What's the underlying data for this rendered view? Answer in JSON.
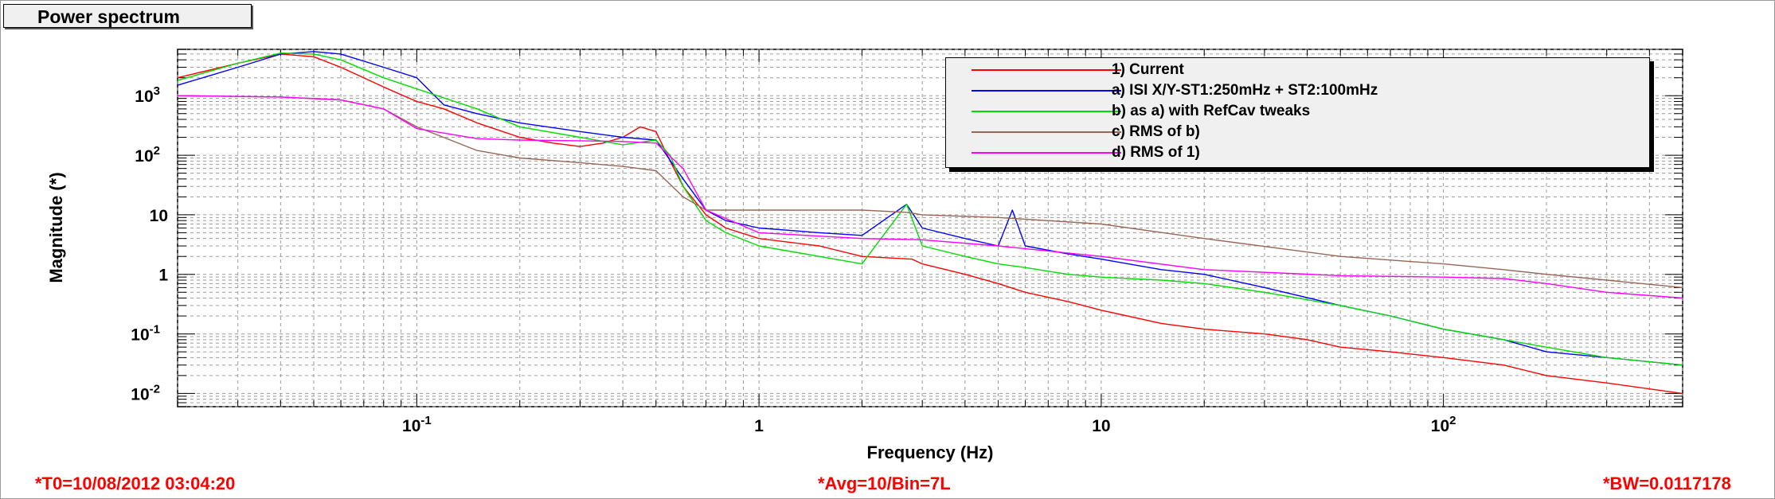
{
  "window": {
    "title": "Power spectrum"
  },
  "footer": {
    "t0": "*T0=10/08/2012 03:04:20",
    "avg": "*Avg=10/Bin=7L",
    "bw": "*BW=0.0117178"
  },
  "chart_data": {
    "type": "line",
    "title": "",
    "xlabel": "Frequency (Hz)",
    "ylabel": "Magnitude (*)",
    "xscale": "log",
    "yscale": "log",
    "xlim": [
      0.02,
      500
    ],
    "ylim": [
      0.006,
      6000
    ],
    "grid": true,
    "legend_position": "top-right",
    "x_ticks": [
      {
        "value": 0.1,
        "label": "10",
        "exp": "-1"
      },
      {
        "value": 1,
        "label": "1",
        "exp": ""
      },
      {
        "value": 10,
        "label": "10",
        "exp": ""
      },
      {
        "value": 100,
        "label": "10",
        "exp": "2"
      }
    ],
    "y_ticks": [
      {
        "value": 0.01,
        "label": "10",
        "exp": "-2"
      },
      {
        "value": 0.1,
        "label": "10",
        "exp": "-1"
      },
      {
        "value": 1,
        "label": "1",
        "exp": ""
      },
      {
        "value": 10,
        "label": "10",
        "exp": ""
      },
      {
        "value": 100,
        "label": "10",
        "exp": "2"
      },
      {
        "value": 1000,
        "label": "10",
        "exp": "3"
      }
    ],
    "series": [
      {
        "name": "1) Current",
        "color": "#ff0000",
        "x": [
          0.02,
          0.03,
          0.04,
          0.05,
          0.06,
          0.07,
          0.08,
          0.1,
          0.12,
          0.15,
          0.2,
          0.25,
          0.3,
          0.35,
          0.4,
          0.45,
          0.5,
          0.55,
          0.6,
          0.7,
          0.8,
          1,
          1.5,
          2,
          2.8,
          3,
          4,
          5,
          6,
          8,
          10,
          15,
          20,
          30,
          40,
          50,
          70,
          100,
          150,
          200,
          300,
          500
        ],
        "y": [
          2000,
          3500,
          5000,
          4500,
          3000,
          2000,
          1400,
          800,
          600,
          350,
          200,
          160,
          140,
          160,
          200,
          300,
          250,
          80,
          30,
          10,
          6,
          4,
          3,
          2,
          1.8,
          1.5,
          1,
          0.7,
          0.5,
          0.35,
          0.25,
          0.15,
          0.12,
          0.1,
          0.08,
          0.06,
          0.05,
          0.04,
          0.03,
          0.02,
          0.015,
          0.01
        ]
      },
      {
        "name": "a) ISI X/Y-ST1:250mHz + ST2:100mHz",
        "color": "#0000ff",
        "x": [
          0.02,
          0.03,
          0.04,
          0.05,
          0.06,
          0.08,
          0.1,
          0.12,
          0.15,
          0.2,
          0.3,
          0.4,
          0.5,
          0.6,
          0.7,
          0.8,
          1,
          1.5,
          2,
          2.7,
          3,
          4,
          5,
          5.5,
          6,
          8,
          10,
          15,
          20,
          30,
          50,
          70,
          100,
          150,
          200,
          300,
          500
        ],
        "y": [
          1500,
          3000,
          5000,
          5500,
          5000,
          3000,
          2000,
          700,
          500,
          350,
          250,
          200,
          180,
          40,
          12,
          8,
          6,
          5,
          4.5,
          15,
          6,
          4,
          3,
          12,
          3,
          2.2,
          1.8,
          1.2,
          1,
          0.6,
          0.3,
          0.2,
          0.12,
          0.08,
          0.05,
          0.04,
          0.03
        ]
      },
      {
        "name": "b) as a) with RefCav tweaks",
        "color": "#00dd00",
        "x": [
          0.02,
          0.03,
          0.04,
          0.05,
          0.06,
          0.08,
          0.1,
          0.15,
          0.2,
          0.3,
          0.4,
          0.5,
          0.55,
          0.6,
          0.7,
          0.8,
          1,
          1.5,
          2,
          2.7,
          3,
          4,
          5,
          6,
          8,
          10,
          15,
          20,
          30,
          50,
          70,
          100,
          150,
          200,
          300,
          500
        ],
        "y": [
          1800,
          3500,
          5200,
          5000,
          4000,
          2000,
          1300,
          600,
          300,
          200,
          150,
          180,
          100,
          30,
          8,
          5,
          3,
          2,
          1.5,
          15,
          3,
          2,
          1.5,
          1.3,
          1,
          0.9,
          0.8,
          0.7,
          0.5,
          0.3,
          0.2,
          0.12,
          0.08,
          0.06,
          0.04,
          0.03
        ]
      },
      {
        "name": "c) RMS of b)",
        "color": "#996655",
        "x": [
          0.02,
          0.04,
          0.06,
          0.08,
          0.1,
          0.15,
          0.2,
          0.3,
          0.4,
          0.5,
          0.6,
          0.7,
          2,
          2.7,
          3,
          5,
          10,
          20,
          50,
          100,
          150,
          200,
          300,
          500
        ],
        "y": [
          1000,
          950,
          850,
          600,
          300,
          120,
          90,
          75,
          65,
          55,
          20,
          12,
          12,
          11,
          10,
          9,
          7,
          4,
          2,
          1.5,
          1.2,
          1,
          0.8,
          0.6
        ]
      },
      {
        "name": "d) RMS of 1)",
        "color": "#ff00ff",
        "x": [
          0.02,
          0.04,
          0.06,
          0.08,
          0.1,
          0.15,
          0.2,
          0.3,
          0.4,
          0.5,
          0.6,
          0.7,
          1,
          2,
          3,
          5,
          10,
          20,
          50,
          100,
          150,
          200,
          300,
          500
        ],
        "y": [
          1000,
          950,
          850,
          600,
          280,
          190,
          180,
          175,
          170,
          160,
          60,
          12,
          5,
          4,
          3.8,
          3,
          2,
          1.2,
          0.95,
          0.9,
          0.85,
          0.7,
          0.5,
          0.4
        ]
      }
    ]
  }
}
